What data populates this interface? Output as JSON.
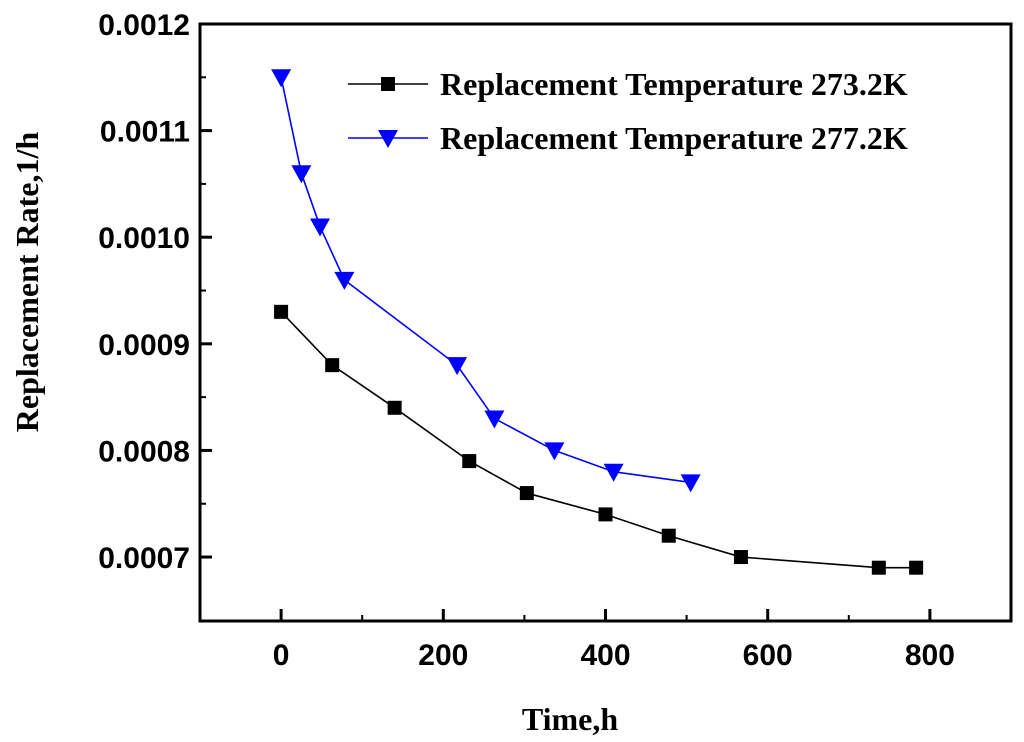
{
  "chart_data": {
    "type": "line",
    "title": "",
    "xlabel": "Time,h",
    "ylabel": "Replacement Rate,1/h",
    "xlim": [
      -100,
      900
    ],
    "ylim": [
      0.00064,
      0.0012
    ],
    "xticks": [
      0,
      200,
      400,
      600,
      800
    ],
    "xtick_labels": [
      "0",
      "200",
      "400",
      "600",
      "800"
    ],
    "yticks": [
      0.0007,
      0.0008,
      0.0009,
      0.001,
      0.0011,
      0.0012
    ],
    "ytick_labels": [
      "0.0007",
      "0.0008",
      "0.0009",
      "0.0010",
      "0.0011",
      "0.0012"
    ],
    "grid": false,
    "legend_position": "top-right",
    "series": [
      {
        "name": "Replacement Temperature 273.2K",
        "color": "#000000",
        "marker": "square",
        "x": [
          0,
          63,
          140,
          232,
          303,
          400,
          478,
          567,
          737,
          783
        ],
        "y": [
          0.00093,
          0.00088,
          0.00084,
          0.00079,
          0.00076,
          0.00074,
          0.00072,
          0.0007,
          0.00069,
          0.00069
        ]
      },
      {
        "name": "Replacement Temperature 277.2K",
        "color": "#0000ff",
        "marker": "triangle-down",
        "x": [
          0,
          25,
          48,
          78,
          217,
          263,
          337,
          410,
          505
        ],
        "y": [
          0.00115,
          0.00106,
          0.00101,
          0.00096,
          0.00088,
          0.00083,
          0.0008,
          0.00078,
          0.00077
        ]
      }
    ]
  }
}
